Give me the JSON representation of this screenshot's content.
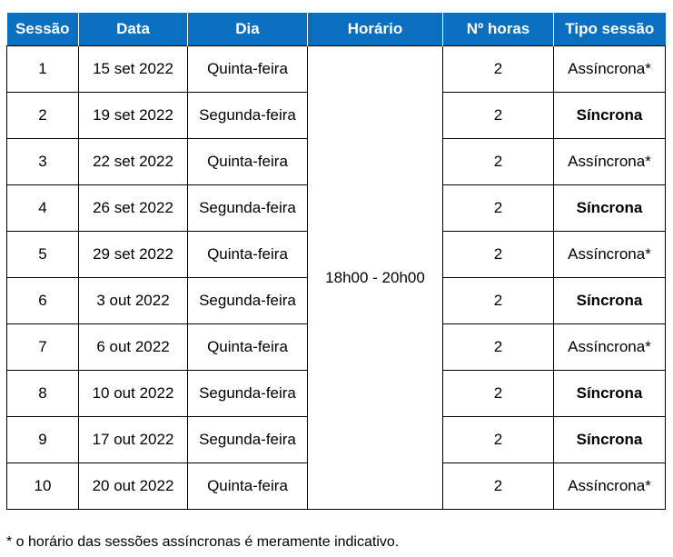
{
  "headers": [
    "Sessão",
    "Data",
    "Dia",
    "Horário",
    "Nº horas",
    "Tipo sessão"
  ],
  "schedule": "18h00 - 20h00",
  "rows": [
    {
      "sessao": "1",
      "data": "15 set 2022",
      "dia": "Quinta-feira",
      "horas": "2",
      "tipo": "Assíncrona*",
      "sync": false
    },
    {
      "sessao": "2",
      "data": "19 set 2022",
      "dia": "Segunda-feira",
      "horas": "2",
      "tipo": "Síncrona",
      "sync": true
    },
    {
      "sessao": "3",
      "data": "22 set 2022",
      "dia": "Quinta-feira",
      "horas": "2",
      "tipo": "Assíncrona*",
      "sync": false
    },
    {
      "sessao": "4",
      "data": "26 set 2022",
      "dia": "Segunda-feira",
      "horas": "2",
      "tipo": "Síncrona",
      "sync": true
    },
    {
      "sessao": "5",
      "data": "29 set 2022",
      "dia": "Quinta-feira",
      "horas": "2",
      "tipo": "Assíncrona*",
      "sync": false
    },
    {
      "sessao": "6",
      "data": "3 out 2022",
      "dia": "Segunda-feira",
      "horas": "2",
      "tipo": "Síncrona",
      "sync": true
    },
    {
      "sessao": "7",
      "data": "6 out 2022",
      "dia": "Quinta-feira",
      "horas": "2",
      "tipo": "Assíncrona*",
      "sync": false
    },
    {
      "sessao": "8",
      "data": "10 out 2022",
      "dia": "Segunda-feira",
      "horas": "2",
      "tipo": "Síncrona",
      "sync": true
    },
    {
      "sessao": "9",
      "data": "17 out 2022",
      "dia": "Segunda-feira",
      "horas": "2",
      "tipo": "Síncrona",
      "sync": true
    },
    {
      "sessao": "10",
      "data": "20 out 2022",
      "dia": "Quinta-feira",
      "horas": "2",
      "tipo": "Assíncrona*",
      "sync": false
    }
  ],
  "footnote": "* o horário das sessões assíncronas é meramente indicativo.",
  "colors": {
    "header_bg": "#0b6fbf",
    "header_text": "#ffffff"
  }
}
